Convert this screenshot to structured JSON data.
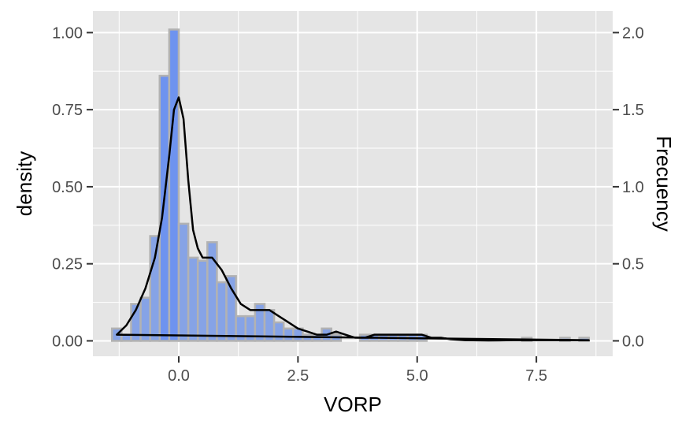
{
  "chart_data": {
    "type": "bar",
    "xlabel": "VORP",
    "ylabel": "density",
    "y2label": "Frecuency",
    "xlim": [
      -1.8,
      9.1
    ],
    "ylim": [
      -0.05,
      1.07
    ],
    "x_ticks": [
      0.0,
      2.5,
      5.0,
      7.5
    ],
    "x_tick_labels": [
      "0.0",
      "2.5",
      "5.0",
      "7.5"
    ],
    "y_ticks": [
      0.0,
      0.25,
      0.5,
      0.75,
      1.0
    ],
    "y_tick_labels": [
      "0.00",
      "0.25",
      "0.50",
      "0.75",
      "1.00"
    ],
    "y2_ticks": [
      0.0,
      0.5,
      1.0,
      1.5,
      2.0
    ],
    "y2_tick_labels": [
      "0.0",
      "0.5",
      "1.0",
      "1.5",
      "2.0"
    ],
    "y2_scale": 2.0,
    "histogram": {
      "bin_width": 0.2,
      "bin_centers": [
        -1.3,
        -1.1,
        -0.9,
        -0.7,
        -0.5,
        -0.3,
        -0.1,
        0.1,
        0.3,
        0.5,
        0.7,
        0.9,
        1.1,
        1.3,
        1.5,
        1.7,
        1.9,
        2.1,
        2.3,
        2.5,
        2.7,
        2.9,
        3.1,
        3.3,
        3.5,
        3.7,
        3.9,
        4.1,
        4.3,
        4.5,
        4.7,
        4.9,
        5.1,
        5.3,
        5.5,
        5.7,
        5.9,
        6.1,
        6.3,
        6.5,
        6.7,
        6.9,
        7.1,
        7.3,
        7.5,
        7.7,
        7.9,
        8.1,
        8.3,
        8.5
      ],
      "values": [
        0.04,
        0.02,
        0.12,
        0.14,
        0.34,
        0.86,
        1.01,
        0.38,
        0.27,
        0.26,
        0.32,
        0.19,
        0.21,
        0.08,
        0.08,
        0.12,
        0.1,
        0.06,
        0.04,
        0.04,
        0.02,
        0.02,
        0.04,
        0.02,
        0.0,
        0.0,
        0.02,
        0.02,
        0.02,
        0.02,
        0.02,
        0.02,
        0.02,
        0.0,
        0.0,
        0.0,
        0.0,
        0.0,
        0.0,
        0.0,
        0.0,
        0.0,
        0.0,
        0.01,
        0.0,
        0.0,
        0.0,
        0.01,
        0.0,
        0.01
      ],
      "fill": "#86a3e6",
      "fill_tall": "#6e93ef",
      "outline": "#b2b2b2"
    },
    "density": {
      "x": [
        -1.3,
        -1.1,
        -0.9,
        -0.7,
        -0.5,
        -0.35,
        -0.2,
        -0.1,
        0.0,
        0.1,
        0.2,
        0.3,
        0.4,
        0.5,
        0.6,
        0.7,
        0.8,
        0.9,
        1.0,
        1.1,
        1.3,
        1.5,
        1.7,
        1.9,
        2.1,
        2.3,
        2.5,
        2.7,
        2.9,
        3.1,
        3.3,
        3.5,
        3.7,
        3.9,
        4.1,
        4.3,
        4.5,
        4.7,
        4.9,
        5.1,
        5.3,
        5.5,
        5.7,
        6.0,
        6.5,
        7.0,
        7.5,
        8.0,
        8.6
      ],
      "y": [
        0.02,
        0.05,
        0.1,
        0.17,
        0.27,
        0.4,
        0.6,
        0.75,
        0.79,
        0.72,
        0.52,
        0.36,
        0.3,
        0.27,
        0.27,
        0.27,
        0.25,
        0.23,
        0.2,
        0.17,
        0.12,
        0.1,
        0.1,
        0.1,
        0.08,
        0.06,
        0.04,
        0.03,
        0.02,
        0.02,
        0.03,
        0.02,
        0.01,
        0.01,
        0.02,
        0.02,
        0.02,
        0.02,
        0.02,
        0.02,
        0.01,
        0.01,
        0.005,
        0.002,
        0.001,
        0.002,
        0.002,
        0.002,
        0.002
      ],
      "color": "#000000"
    },
    "panel_background": "#e5e5e5",
    "grid_color": "#ffffff",
    "grid": true
  }
}
